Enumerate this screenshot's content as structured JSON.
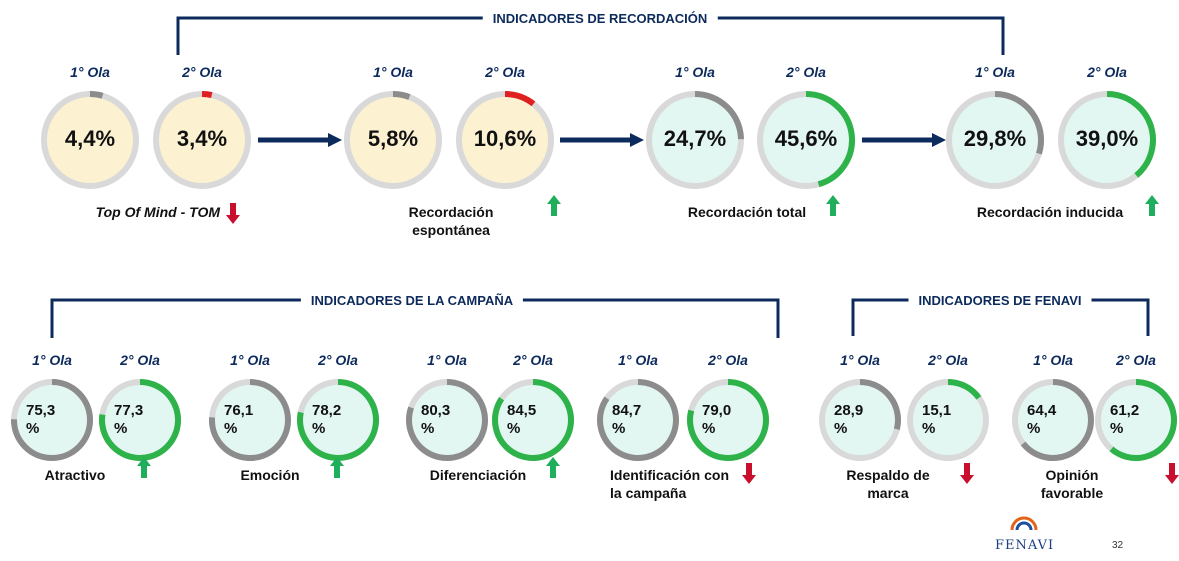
{
  "sections": [
    {
      "title": "INDICADORES DE RECORDACIÓN",
      "indicators": [
        {
          "caption": "Top Of Mind - TOM",
          "trend": "down",
          "fill": "#fcf2d2",
          "waves": [
            {
              "label": "1° Ola",
              "value": {
                "value": 4.4,
                "label": "4,4%"
              },
              "color": "#8c8c8c"
            },
            {
              "label": "2° Ola",
              "value": {
                "value": 3.4,
                "label": "3,4%"
              },
              "color": "#e02020"
            }
          ]
        },
        {
          "caption": "Recordación espontánea",
          "trend": "up",
          "fill": "#fcf2d2",
          "waves": [
            {
              "label": "1° Ola",
              "value": {
                "value": 5.8,
                "label": "5,8%"
              },
              "color": "#8c8c8c"
            },
            {
              "label": "2° Ola",
              "value": {
                "value": 10.6,
                "label": "10,6%"
              },
              "color": "#e02020"
            }
          ]
        },
        {
          "caption": "Recordación total",
          "trend": "up",
          "fill": "#e2f6f2",
          "waves": [
            {
              "label": "1° Ola",
              "value": {
                "value": 24.7,
                "label": "24,7%"
              },
              "color": "#8c8c8c"
            },
            {
              "label": "2° Ola",
              "value": {
                "value": 45.6,
                "label": "45,6%"
              },
              "color": "#2db34a"
            }
          ]
        },
        {
          "caption": "Recordación inducida",
          "trend": "up",
          "fill": "#e2f6f2",
          "waves": [
            {
              "label": "1° Ola",
              "value": {
                "value": 29.8,
                "label": "29,8%"
              },
              "color": "#8c8c8c"
            },
            {
              "label": "2° Ola",
              "value": {
                "value": 39.0,
                "label": "39,0%"
              },
              "color": "#2db34a"
            }
          ]
        }
      ]
    },
    {
      "title": "INDICADORES DE LA CAMPAÑA",
      "indicators": [
        {
          "caption": "Atractivo",
          "trend": "up",
          "fill": "#e2f6f2",
          "waves": [
            {
              "label": "1° Ola",
              "value": {
                "value": 75.3,
                "label": "75,3 %"
              },
              "color": "#8c8c8c"
            },
            {
              "label": "2° Ola",
              "value": {
                "value": 77.3,
                "label": "77,3 %"
              },
              "color": "#2db34a"
            }
          ]
        },
        {
          "caption": "Emoción",
          "trend": "up",
          "fill": "#e2f6f2",
          "waves": [
            {
              "label": "1° Ola",
              "value": {
                "value": 76.1,
                "label": "76,1 %"
              },
              "color": "#8c8c8c"
            },
            {
              "label": "2° Ola",
              "value": {
                "value": 78.2,
                "label": "78,2 %"
              },
              "color": "#2db34a"
            }
          ]
        },
        {
          "caption": "Diferenciación",
          "trend": "up",
          "fill": "#e2f6f2",
          "waves": [
            {
              "label": "1° Ola",
              "value": {
                "value": 80.3,
                "label": "80,3 %"
              },
              "color": "#8c8c8c"
            },
            {
              "label": "2° Ola",
              "value": {
                "value": 84.5,
                "label": "84,5 %"
              },
              "color": "#2db34a"
            }
          ]
        },
        {
          "caption": "Identificación con la campaña",
          "trend": "down",
          "fill": "#e2f6f2",
          "waves": [
            {
              "label": "1° Ola",
              "value": {
                "value": 84.7,
                "label": "84,7 %"
              },
              "color": "#8c8c8c"
            },
            {
              "label": "2° Ola",
              "value": {
                "value": 79.0,
                "label": "79,0 %"
              },
              "color": "#2db34a"
            }
          ]
        }
      ]
    },
    {
      "title": "INDICADORES DE FENAVI",
      "indicators": [
        {
          "caption": "Respaldo de marca",
          "trend": "down",
          "fill": "#e2f6f2",
          "waves": [
            {
              "label": "1° Ola",
              "value": {
                "value": 28.9,
                "label": "28,9 %"
              },
              "color": "#8c8c8c"
            },
            {
              "label": "2° Ola",
              "value": {
                "value": 15.1,
                "label": "15,1 %"
              },
              "color": "#2db34a"
            }
          ]
        },
        {
          "caption": "Opinión favorable",
          "trend": "down",
          "fill": "#e2f6f2",
          "waves": [
            {
              "label": "1° Ola",
              "value": {
                "value": 64.4,
                "label": "64,4 %"
              },
              "color": "#8c8c8c"
            },
            {
              "label": "2° Ola",
              "value": {
                "value": 61.2,
                "label": "61,2 %"
              },
              "color": "#2db34a"
            }
          ]
        }
      ]
    }
  ],
  "footer": {
    "logo": "FENAVI",
    "page": "32"
  }
}
